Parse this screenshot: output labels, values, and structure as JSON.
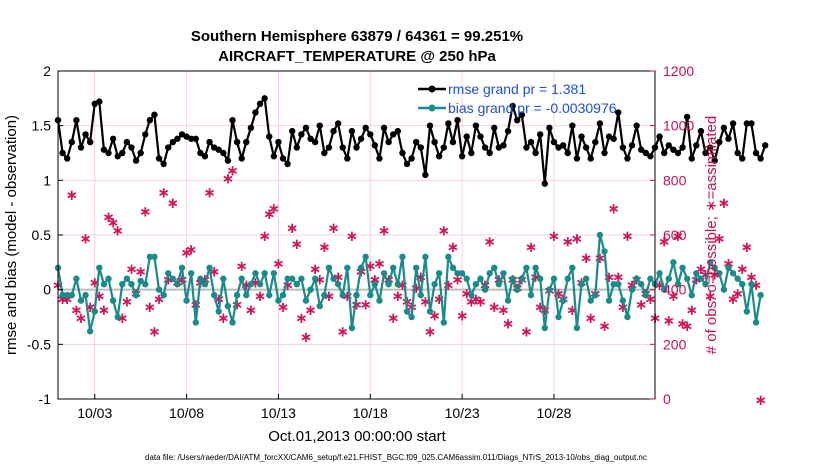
{
  "chart_data": {
    "type": "line",
    "title_line1": "Southern Hemisphere 63879 / 64361 = 99.251%",
    "title_line2": "AIRCRAFT_TEMPERATURE @ 250 hPa",
    "xlabel": "Oct.01,2013 00:00:00 start",
    "ylabel_left": "rmse and bias (model - observation)",
    "ylabel_right": "# of obs: o=possible; ∗=assimilated",
    "xlim": [
      1,
      33.5
    ],
    "ylim_left": [
      -1,
      2
    ],
    "ylim_right": [
      0,
      1200
    ],
    "x_tick_values": [
      3,
      8,
      13,
      18,
      23,
      28
    ],
    "x_tick_labels": [
      "10/03",
      "10/08",
      "10/13",
      "10/18",
      "10/23",
      "10/28"
    ],
    "y_left_ticks": [
      -1,
      -0.5,
      0,
      0.5,
      1,
      1.5,
      2
    ],
    "y_left_tick_labels": [
      "-1",
      "-0.5",
      "0",
      "0.5",
      "1",
      "1.5",
      "2"
    ],
    "y_right_ticks": [
      0,
      200,
      400,
      600,
      800,
      1000,
      1200
    ],
    "y_right_tick_labels": [
      "0",
      "200",
      "400",
      "600",
      "800",
      "1000",
      "1200"
    ],
    "legend": [
      "rmse grand pr = 1.381",
      "bias grand pr = -0.0030976"
    ],
    "footnote": "data file: /Users/raeder/DAI/ATM_forcXX/CAM6_setup/f.e21.FHIST_BGC.f09_025.CAM6assim.011/Diags_NTrS_2013-10/obs_diag_output.nc",
    "x_step": 0.25,
    "rmse": [
      1.55,
      1.25,
      1.2,
      1.35,
      1.55,
      1.3,
      1.42,
      1.35,
      1.7,
      1.72,
      1.28,
      1.25,
      1.38,
      1.22,
      1.25,
      1.35,
      1.3,
      1.18,
      1.25,
      1.42,
      1.55,
      1.6,
      1.2,
      1.15,
      1.3,
      1.35,
      1.38,
      1.42,
      1.4,
      1.38,
      1.38,
      1.25,
      1.22,
      1.35,
      1.3,
      1.28,
      1.25,
      1.18,
      1.55,
      1.35,
      1.2,
      1.35,
      1.48,
      1.62,
      1.7,
      1.75,
      1.4,
      1.22,
      1.35,
      1.2,
      1.15,
      1.45,
      1.3,
      1.42,
      1.48,
      1.38,
      1.35,
      1.5,
      1.25,
      1.3,
      1.45,
      1.52,
      1.3,
      1.2,
      1.45,
      1.3,
      1.38,
      1.48,
      1.42,
      1.32,
      1.2,
      1.48,
      1.35,
      1.42,
      1.45,
      1.25,
      1.15,
      1.2,
      1.35,
      1.3,
      1.05,
      1.5,
      1.35,
      1.22,
      1.3,
      1.52,
      1.35,
      1.55,
      1.22,
      1.4,
      1.25,
      1.5,
      1.4,
      1.3,
      1.25,
      1.48,
      1.3,
      1.32,
      1.45,
      1.68,
      1.55,
      1.6,
      1.3,
      1.35,
      1.25,
      1.42,
      0.97,
      1.48,
      1.35,
      1.3,
      1.32,
      1.25,
      1.5,
      1.2,
      1.4,
      1.3,
      1.2,
      1.35,
      1.52,
      1.25,
      1.4,
      1.38,
      1.62,
      1.3,
      1.2,
      1.32,
      1.5,
      1.28,
      1.25,
      1.22,
      1.3,
      1.4,
      1.25,
      1.32,
      1.28,
      1.25,
      1.3,
      1.58,
      1.2,
      1.32,
      1.45,
      1.25,
      1.3,
      1.18,
      1.35,
      1.48,
      1.38,
      1.52,
      1.25,
      1.2,
      1.52,
      1.52,
      1.25,
      1.2,
      1.32
    ],
    "bias": [
      0.2,
      -0.05,
      -0.05,
      -0.05,
      0.1,
      -0.1,
      -0.05,
      -0.38,
      -0.2,
      0.2,
      0.05,
      0.1,
      -0.1,
      -0.25,
      0.05,
      0.1,
      0.05,
      -0.05,
      0.08,
      0.05,
      0.3,
      0.3,
      0.0,
      -0.05,
      0.15,
      0.1,
      0.05,
      0.2,
      -0.1,
      0.15,
      -0.3,
      0.1,
      0.05,
      0.2,
      -0.05,
      -0.2,
      0.1,
      -0.15,
      -0.3,
      -0.05,
      0.1,
      -0.05,
      0.05,
      0.15,
      0.05,
      0.15,
      -0.05,
      0.15,
      -0.1,
      -0.05,
      0.1,
      0.1,
      0.05,
      0.1,
      -0.1,
      0.0,
      0.1,
      -0.15,
      -0.05,
      0.2,
      0.1,
      0.05,
      -0.05,
      0.2,
      -0.35,
      -0.05,
      0.2,
      0.3,
      -0.05,
      0.05,
      -0.1,
      0.15,
      0.05,
      0.2,
      0.05,
      0.3,
      -0.2,
      -0.25,
      0.2,
      -0.05,
      0.3,
      -0.2,
      0.05,
      0.15,
      -0.3,
      0.3,
      0.2,
      0.15,
      0.15,
      0.1,
      -0.05,
      0.05,
      0.1,
      0.0,
      0.15,
      0.2,
      0.05,
      0.15,
      -0.1,
      0.1,
      0.0,
      0.1,
      0.2,
      -0.05,
      0.2,
      0.1,
      -0.35,
      0.0,
      0.1,
      -0.25,
      -0.1,
      0.1,
      0.2,
      -0.35,
      0.05,
      0.1,
      -0.1,
      -0.05,
      0.5,
      0.35,
      -0.1,
      0.05,
      0.05,
      -0.1,
      -0.25,
      0.0,
      0.1,
      0.05,
      -0.05,
      0.1,
      0.05,
      0.15,
      0.0,
      0.1,
      0.25,
      0.05,
      0.2,
      0.1,
      -0.05,
      0.15,
      0.1,
      0.05,
      0.25,
      0.2,
      0.15,
      0.0,
      0.2,
      0.15,
      0.1,
      0.05,
      -0.2,
      0.05,
      -0.3,
      -0.05
    ],
    "obs_used": [
      420,
      370,
      370,
      750,
      330,
      300,
      590,
      340,
      430,
      380,
      330,
      670,
      650,
      620,
      300,
      360,
      480,
      390,
      470,
      690,
      340,
      250,
      370,
      760,
      440,
      720,
      430,
      440,
      540,
      550,
      350,
      430,
      440,
      760,
      470,
      370,
      300,
      810,
      840,
      350,
      490,
      420,
      330,
      430,
      380,
      600,
      680,
      700,
      500,
      340,
      420,
      630,
      570,
      300,
      230,
      330,
      480,
      440,
      560,
      380,
      630,
      450,
      250,
      380,
      600,
      350,
      470,
      350,
      490,
      440,
      500,
      620,
      440,
      300,
      380,
      420,
      360,
      340,
      410,
      450,
      360,
      250,
      310,
      370,
      620,
      420,
      560,
      440,
      310,
      390,
      360,
      370,
      360,
      420,
      580,
      340,
      440,
      330,
      280,
      440,
      410,
      440,
      250,
      560,
      450,
      340,
      330,
      400,
      600,
      390,
      370,
      580,
      330,
      590,
      430,
      520,
      300,
      390,
      520,
      270,
      450,
      700,
      450,
      340,
      600,
      420,
      440,
      350,
      390,
      370,
      300,
      420,
      580,
      290,
      380,
      600,
      280,
      270,
      330,
      440,
      480,
      460,
      380,
      460,
      590,
      720,
      500,
      370,
      390,
      480,
      560,
      450,
      420,
      0
    ]
  }
}
